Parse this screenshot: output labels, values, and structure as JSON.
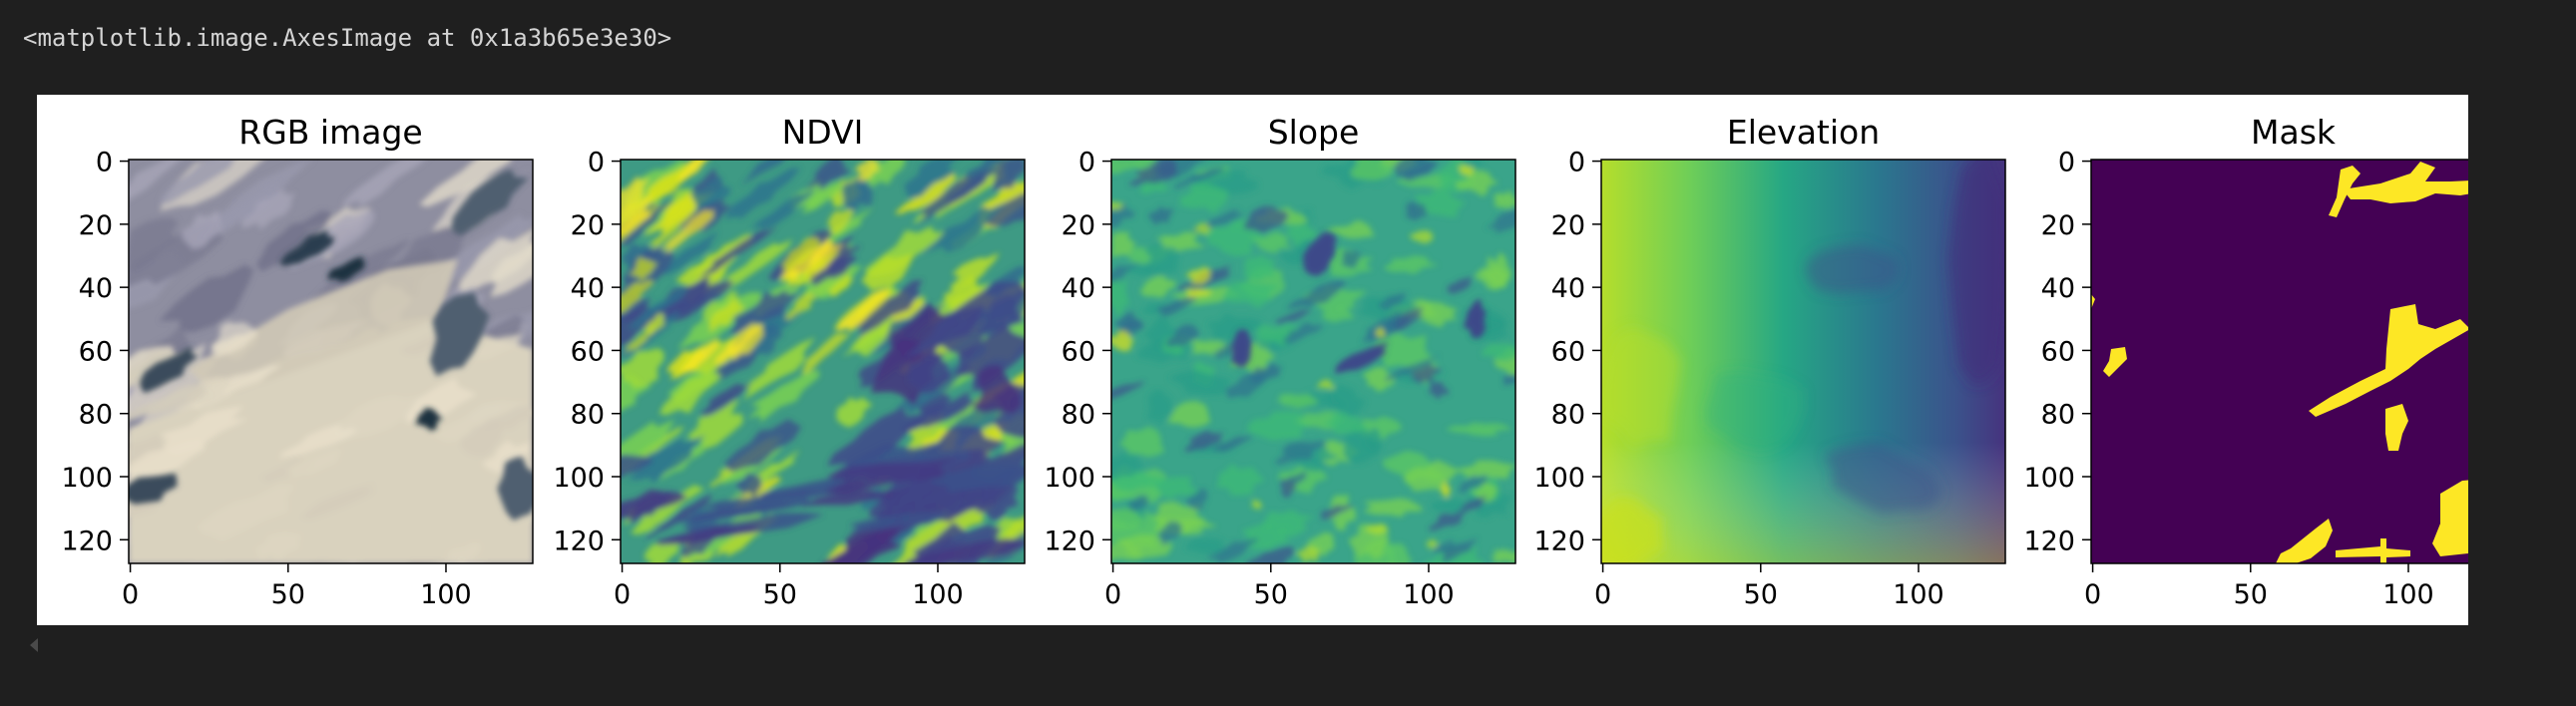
{
  "output": {
    "repr_text": "<matplotlib.image.AxesImage at 0x1a3b65e3e30>"
  },
  "figure": {
    "panels": [
      {
        "title": "RGB image",
        "kind": "rgb"
      },
      {
        "title": "NDVI",
        "kind": "ndvi"
      },
      {
        "title": "Slope",
        "kind": "slope"
      },
      {
        "title": "Elevation",
        "kind": "elevation"
      },
      {
        "title": "Mask",
        "kind": "mask"
      }
    ],
    "x_ticks": [
      {
        "value": 0,
        "label": "0"
      },
      {
        "value": 50,
        "label": "50"
      },
      {
        "value": 100,
        "label": "100"
      }
    ],
    "y_ticks": [
      {
        "value": 0,
        "label": "0"
      },
      {
        "value": 20,
        "label": "20"
      },
      {
        "value": 40,
        "label": "40"
      },
      {
        "value": 60,
        "label": "60"
      },
      {
        "value": 80,
        "label": "80"
      },
      {
        "value": 100,
        "label": "100"
      },
      {
        "value": 120,
        "label": "120"
      }
    ],
    "image_extent": [
      -0.5,
      127.5
    ],
    "colors": {
      "viridis_low": "#440154",
      "viridis_mid": "#21918c",
      "viridis_high": "#fde725",
      "mask_background": "#440154",
      "mask_foreground": "#fde725",
      "page_background": "#1f1f1f",
      "figure_background": "#ffffff"
    },
    "scroll_icon": "scroll-left-arrow-icon"
  }
}
